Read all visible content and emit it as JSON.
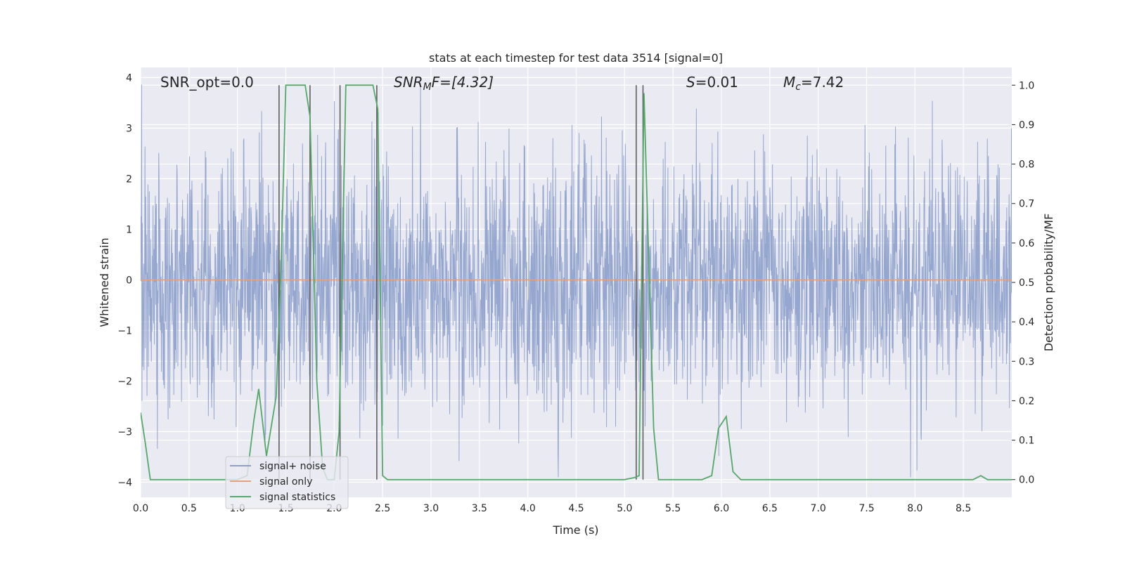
{
  "chart_data": {
    "type": "line",
    "title": "stats at each timestep for test data 3514 [signal=0]",
    "xlabel": "Time (s)",
    "ylabel": "Whitened strain",
    "y2label": "Detection probability/MF",
    "xlim": [
      0.0,
      9.0
    ],
    "ylim": [
      -4.3,
      4.2
    ],
    "y2lim": [
      -0.045,
      1.045
    ],
    "x_ticks": [
      "0.0",
      "0.5",
      "1.0",
      "1.5",
      "2.0",
      "2.5",
      "3.0",
      "3.5",
      "4.0",
      "4.5",
      "5.0",
      "5.5",
      "6.0",
      "6.5",
      "7.0",
      "7.5",
      "8.0",
      "8.5"
    ],
    "y_ticks": [
      "4",
      "3",
      "2",
      "1",
      "0",
      "−1",
      "−2",
      "−3",
      "−4"
    ],
    "y2_ticks": [
      "1.0",
      "0.9",
      "0.8",
      "0.7",
      "0.6",
      "0.5",
      "0.4",
      "0.3",
      "0.2",
      "0.1",
      "0.0"
    ],
    "grid": true,
    "legend_position": "bottom-left",
    "annotations": {
      "snr_opt": "SNR_opt=0.0",
      "snr_mf_base": "SNR",
      "snr_mf_sub": "M",
      "snr_mf_tail": "F=[4.32]",
      "s_var": "S",
      "s_val": "=0.01",
      "mc_var": "M",
      "mc_sub": "c",
      "mc_val": "=7.42"
    },
    "series": [
      {
        "name": "signal+ noise",
        "color": "#8da0cb",
        "description_type": "noisy whitened strain, amplitude ~±2 with spikes to ±3.5",
        "x_range": [
          0.0,
          9.0
        ],
        "typical_amplitude": 2.0,
        "max_abs": 3.9
      },
      {
        "name": "signal only",
        "color": "#e8a07a",
        "x": [
          0.0,
          9.0
        ],
        "y": [
          0.0,
          0.0
        ]
      },
      {
        "name": "signal statistics",
        "color": "#55a868",
        "x": [
          0.0,
          0.05,
          0.1,
          0.15,
          0.5,
          1.0,
          1.1,
          1.17,
          1.22,
          1.3,
          1.4,
          1.45,
          1.5,
          1.55,
          1.7,
          1.75,
          1.82,
          1.88,
          1.93,
          2.0,
          2.05,
          2.12,
          2.2,
          2.4,
          2.45,
          2.5,
          2.55,
          3.0,
          4.0,
          5.0,
          5.1,
          5.15,
          5.2,
          5.25,
          5.3,
          5.35,
          5.5,
          5.8,
          5.9,
          5.97,
          6.05,
          6.12,
          6.2,
          7.0,
          8.0,
          8.6,
          8.68,
          8.75,
          9.0
        ],
        "y": [
          0.17,
          0.09,
          0.0,
          0.0,
          0.0,
          0.0,
          0.01,
          0.15,
          0.23,
          0.06,
          0.21,
          0.53,
          1.0,
          1.0,
          1.0,
          0.92,
          0.25,
          0.03,
          0.0,
          0.0,
          0.12,
          1.0,
          1.0,
          1.0,
          0.94,
          0.01,
          0.0,
          0.0,
          0.0,
          0.0,
          0.005,
          0.01,
          0.98,
          0.55,
          0.13,
          0.0,
          0.0,
          0.0,
          0.01,
          0.13,
          0.16,
          0.02,
          0.0,
          0.0,
          0.0,
          0.0,
          0.01,
          0.0,
          0.0
        ]
      }
    ],
    "vertical_markers": [
      1.43,
      1.75,
      2.06,
      2.44,
      5.12,
      5.19
    ]
  }
}
